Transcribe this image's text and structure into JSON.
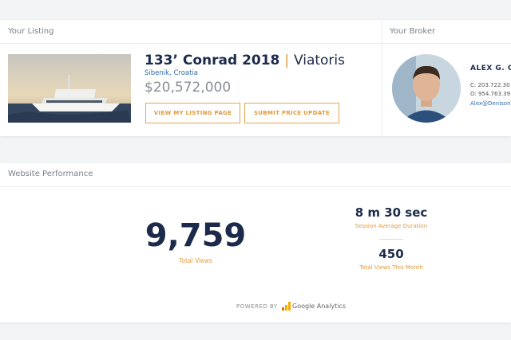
{
  "listing": {
    "heading": "Your Listing",
    "title": "133’ Conrad 2018",
    "separator": "|",
    "name": "Viatoris",
    "location": "Sibenik, Croatia",
    "price": "$20,572,000",
    "buttons": [
      "VIEW MY LISTING PAGE",
      "SUBMIT PRICE UPDATE"
    ]
  },
  "broker": {
    "heading": "Your Broker",
    "name": "ALEX G. C",
    "phone_c": "C: 203.722.30",
    "phone_o": "O: 954.763.39",
    "email": "Alex@DenisonY"
  },
  "performance": {
    "heading": "Website Performance",
    "total_views": "9,759",
    "total_views_label": "Total Views",
    "session_duration": "8 m 30 sec",
    "session_duration_label": "Session Average Duration",
    "month_views": "450",
    "month_views_label": "Total Views This Month",
    "powered_by": "POWERED BY",
    "provider": "Google Analytics"
  }
}
